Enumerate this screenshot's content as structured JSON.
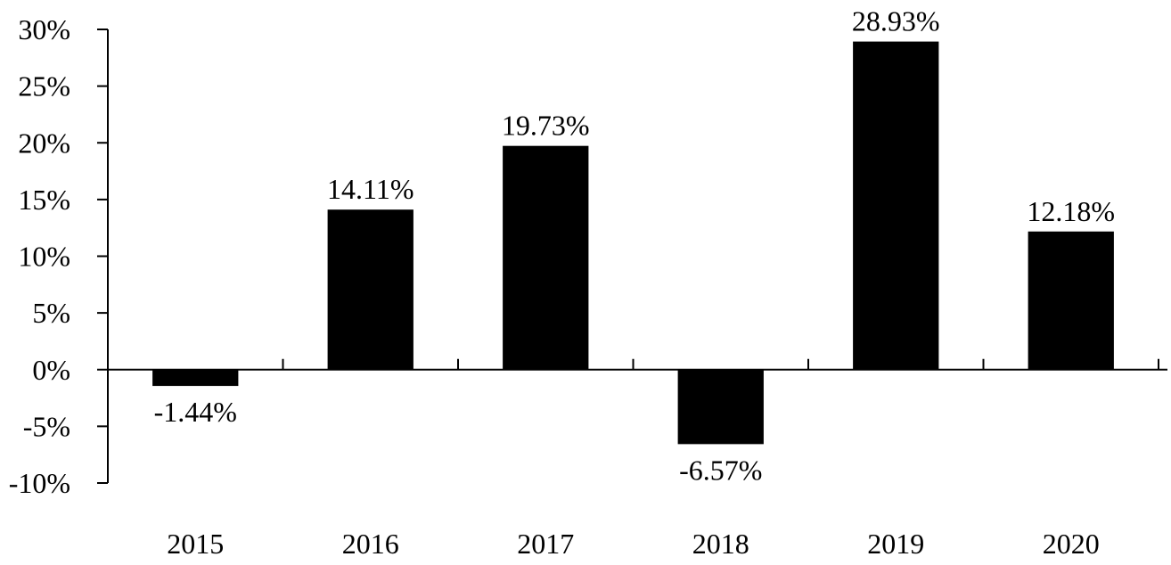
{
  "chart_data": {
    "type": "bar",
    "title": "",
    "xlabel": "",
    "ylabel": "",
    "categories": [
      "2015",
      "2016",
      "2017",
      "2018",
      "2019",
      "2020"
    ],
    "values": [
      -1.44,
      14.11,
      19.73,
      -6.57,
      28.93,
      12.18
    ],
    "data_labels": [
      "-1.44%",
      "14.11%",
      "19.73%",
      "-6.57%",
      "28.93%",
      "12.18%"
    ],
    "ylim": [
      -10,
      30
    ],
    "y_ticks": [
      30,
      25,
      20,
      15,
      10,
      5,
      0,
      -5,
      -10
    ],
    "y_tick_labels": [
      "30%",
      "25%",
      "20%",
      "15%",
      "10%",
      "5%",
      "0%",
      "-5%",
      "-10%"
    ],
    "grid": false,
    "legend": "none",
    "bar_color": "#000000"
  }
}
